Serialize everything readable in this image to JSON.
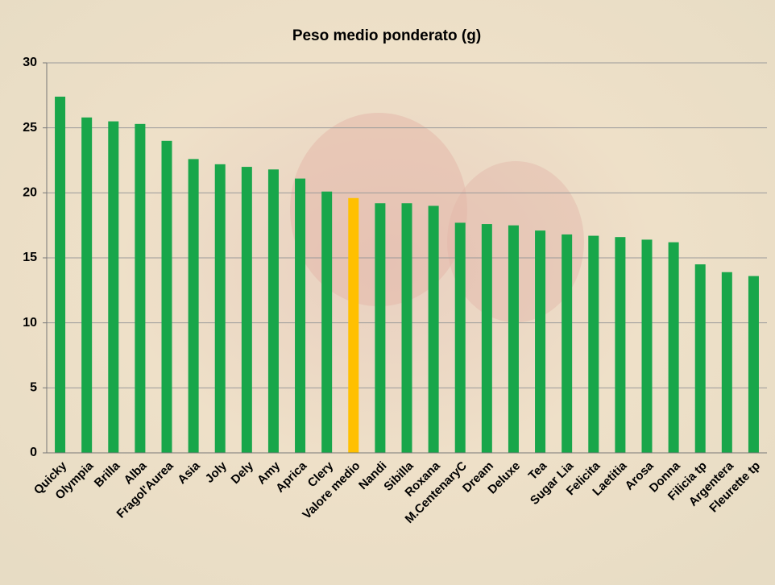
{
  "chart_data": {
    "type": "bar",
    "title": "Peso medio ponderato (g)",
    "categories": [
      "Quicky",
      "Olympia",
      "Brilla",
      "Alba",
      "Fragol'Aurea",
      "Asia",
      "Joly",
      "Dely",
      "Amy",
      "Aprica",
      "Clery",
      "Valore medio",
      "Nandi",
      "Sibilla",
      "Roxana",
      "M.CentenaryC",
      "Dream",
      "Deluxe",
      "Tea",
      "Sugar Lia",
      "Felicita",
      "Laetitia",
      "Arosa",
      "Donna",
      "Filicia tp",
      "Argentera",
      "Fleurette tp"
    ],
    "values": [
      27.4,
      25.8,
      25.5,
      25.3,
      24.0,
      22.6,
      22.2,
      22.0,
      21.8,
      21.1,
      20.1,
      19.6,
      19.2,
      19.2,
      19.0,
      17.7,
      17.6,
      17.5,
      17.1,
      16.8,
      16.7,
      16.6,
      16.4,
      16.2,
      14.5,
      13.9,
      13.6
    ],
    "colors": [
      "#18a64a",
      "#18a64a",
      "#18a64a",
      "#18a64a",
      "#18a64a",
      "#18a64a",
      "#18a64a",
      "#18a64a",
      "#18a64a",
      "#18a64a",
      "#18a64a",
      "#ffc000",
      "#18a64a",
      "#18a64a",
      "#18a64a",
      "#18a64a",
      "#18a64a",
      "#18a64a",
      "#18a64a",
      "#18a64a",
      "#18a64a",
      "#18a64a",
      "#18a64a",
      "#18a64a",
      "#18a64a",
      "#18a64a",
      "#18a64a"
    ],
    "ylim": [
      0,
      30
    ],
    "yticks": [
      0,
      5,
      10,
      15,
      20,
      25,
      30
    ],
    "grid": true
  }
}
